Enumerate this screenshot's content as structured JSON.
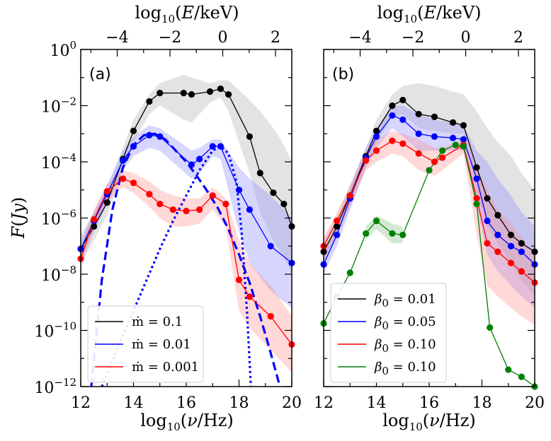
{
  "figure": {
    "ylabel": "F(Jy)",
    "xlabel": "log10(ν/Hz)",
    "top_xlabel": "log10(E/keV)"
  },
  "chart_data": [
    {
      "type": "line",
      "panel_label": "(a)",
      "xlim": [
        12,
        20
      ],
      "ylim_log10": [
        -12,
        0
      ],
      "x_ticks": [
        "12",
        "14",
        "16",
        "18",
        "20"
      ],
      "top_ticks": [
        "−4",
        "−2",
        "0",
        "2"
      ],
      "y_ticks": [
        {
          "base": "10",
          "exp": "0"
        },
        {
          "base": "10",
          "exp": "−2"
        },
        {
          "base": "10",
          "exp": "−4"
        },
        {
          "base": "10",
          "exp": "−6"
        },
        {
          "base": "10",
          "exp": "−8"
        },
        {
          "base": "10",
          "exp": "−10"
        },
        {
          "base": "10",
          "exp": "−12"
        }
      ],
      "legend": [
        {
          "label": "ṁ = 0.1",
          "color": "#000000"
        },
        {
          "label": "ṁ = 0.01",
          "color": "#0000ff"
        },
        {
          "label": "ṁ = 0.001",
          "color": "#ff0000"
        }
      ],
      "series": [
        {
          "name": "ṁ = 0.1",
          "color": "#000000",
          "band": "#b0b0b0",
          "x": [
            12.0,
            12.5,
            13.0,
            13.6,
            14.0,
            14.6,
            15.0,
            15.9,
            16.2,
            16.9,
            17.3,
            17.6,
            18.4,
            18.8,
            19.3,
            19.7,
            20.0
          ],
          "y": [
            -7.1,
            -6.3,
            -5.45,
            -3.9,
            -2.9,
            -1.85,
            -1.55,
            -1.55,
            -1.6,
            -1.5,
            -1.4,
            -1.6,
            -3.1,
            -4.4,
            -5.1,
            -5.5,
            -6.3
          ],
          "band_x": [
            12.0,
            12.5,
            13.0,
            13.6,
            14.0,
            14.6,
            15.0,
            15.9,
            16.2,
            16.9,
            17.3,
            17.6,
            18.4,
            18.8,
            19.3,
            19.7,
            20.0
          ],
          "band_hi": [
            -6.6,
            -5.8,
            -5.0,
            -3.5,
            -2.5,
            -1.6,
            -1.2,
            -0.9,
            -1.0,
            -1.2,
            -1.1,
            -1.1,
            -1.8,
            -2.2,
            -2.8,
            -3.4,
            -4.0
          ],
          "band_lo": [
            -7.6,
            -6.8,
            -5.9,
            -4.3,
            -3.3,
            -2.3,
            -2.0,
            -2.5,
            -2.6,
            -1.9,
            -1.7,
            -2.2,
            -4.4,
            -5.8,
            -6.8,
            -7.4,
            -8.0
          ]
        },
        {
          "name": "ṁ = 0.01",
          "color": "#0000ff",
          "band": "#8a8aff",
          "x": [
            12.0,
            12.5,
            13.0,
            13.6,
            14.0,
            14.6,
            15.0,
            16.2,
            16.5,
            17.0,
            17.3,
            18.0,
            18.4,
            19.2,
            20.0
          ],
          "y": [
            -7.1,
            -6.1,
            -5.15,
            -3.95,
            -3.45,
            -3.05,
            -3.1,
            -4.1,
            -3.9,
            -3.45,
            -3.45,
            -5.0,
            -5.7,
            -7.0,
            -7.6
          ],
          "band_x": [
            12.0,
            12.5,
            13.0,
            13.6,
            14.0,
            14.6,
            15.0,
            16.2,
            16.5,
            17.0,
            17.3,
            18.0,
            18.4,
            19.2,
            20.0
          ],
          "band_hi": [
            -6.8,
            -5.8,
            -4.8,
            -3.6,
            -3.1,
            -2.7,
            -2.8,
            -3.6,
            -3.5,
            -3.2,
            -3.2,
            -4.2,
            -4.6,
            -5.2,
            -6.0
          ],
          "band_lo": [
            -7.5,
            -6.5,
            -5.5,
            -4.3,
            -3.8,
            -3.5,
            -3.6,
            -4.6,
            -4.4,
            -3.8,
            -3.9,
            -6.5,
            -7.6,
            -8.6,
            -9.2
          ]
        },
        {
          "name": "ṁ = 0.001",
          "color": "#ff0000",
          "band": "#ff9090",
          "x": [
            12.0,
            12.5,
            13.0,
            13.6,
            14.0,
            14.6,
            15.0,
            15.5,
            16.0,
            16.5,
            17.0,
            17.5,
            18.0,
            18.4,
            19.2,
            20.0
          ],
          "y": [
            -7.45,
            -6.05,
            -5.05,
            -4.6,
            -4.75,
            -5.15,
            -5.5,
            -5.7,
            -5.75,
            -5.7,
            -5.2,
            -5.5,
            -8.2,
            -8.8,
            -9.5,
            -10.5
          ],
          "band_x": [
            12.0,
            12.5,
            13.0,
            13.6,
            14.0,
            14.6,
            15.0,
            15.5,
            16.0,
            16.5,
            17.0,
            17.5,
            18.0,
            18.4,
            19.2,
            20.0
          ],
          "band_hi": [
            -7.1,
            -5.7,
            -4.8,
            -4.3,
            -4.4,
            -4.7,
            -5.0,
            -5.2,
            -5.3,
            -5.3,
            -4.9,
            -5.3,
            -6.8,
            -7.6,
            -8.4,
            -9.5
          ],
          "band_lo": [
            -7.8,
            -6.4,
            -5.4,
            -4.9,
            -5.1,
            -5.6,
            -6.0,
            -6.3,
            -6.3,
            -6.2,
            -5.7,
            -6.3,
            -9.3,
            -9.9,
            -10.7,
            -11.5
          ]
        }
      ],
      "model_curves": [
        {
          "name": "dashed",
          "color": "#0000ff",
          "style": "dashed",
          "x": [
            12.4,
            12.8,
            13.2,
            13.6,
            14.0,
            14.4,
            14.8,
            15.2,
            15.6,
            16.0,
            16.4,
            16.8,
            17.2,
            17.6,
            18.0,
            18.4,
            18.8,
            19.2,
            19.55
          ],
          "y": [
            -12.0,
            -8.2,
            -5.7,
            -4.2,
            -3.4,
            -3.05,
            -3.0,
            -3.2,
            -3.6,
            -4.0,
            -4.5,
            -5.05,
            -5.65,
            -6.4,
            -7.3,
            -8.3,
            -9.5,
            -10.8,
            -12.0
          ]
        },
        {
          "name": "dotted",
          "color": "#0000ff",
          "style": "dotted",
          "x": [
            12.8,
            13.5,
            14.0,
            14.5,
            15.0,
            15.5,
            16.0,
            16.5,
            17.0,
            17.3,
            17.6,
            17.9,
            18.1,
            18.3,
            18.45
          ],
          "y": [
            -12.0,
            -10.4,
            -9.3,
            -8.2,
            -7.1,
            -6.1,
            -5.2,
            -4.3,
            -3.6,
            -3.45,
            -3.7,
            -4.7,
            -6.5,
            -9.3,
            -12.0
          ]
        }
      ]
    },
    {
      "type": "line",
      "panel_label": "(b)",
      "xlim": [
        12,
        20
      ],
      "ylim_log10": [
        -12,
        0
      ],
      "x_ticks": [
        "12",
        "14",
        "16",
        "18",
        "20"
      ],
      "top_ticks": [
        "−4",
        "−2",
        "0",
        "2"
      ],
      "legend": [
        {
          "label": "β0 = 0.01",
          "base": "β",
          "sub": "0",
          "rest": " = 0.01",
          "color": "#000000"
        },
        {
          "label": "β0 = 0.05",
          "base": "β",
          "sub": "0",
          "rest": " = 0.05",
          "color": "#0000ff"
        },
        {
          "label": "β0 = 0.10",
          "base": "β",
          "sub": "0",
          "rest": " = 0.10",
          "color": "#ff0000"
        },
        {
          "label": "β0 = 0.10",
          "base": "β",
          "sub": "0",
          "rest": " = 0.10",
          "color": "#008000"
        }
      ],
      "series": [
        {
          "name": "β0 = 0.01",
          "color": "#000000",
          "band": "#b0b0b0",
          "x": [
            12.0,
            12.5,
            13.0,
            13.6,
            14.0,
            14.6,
            15.0,
            15.6,
            16.2,
            16.9,
            17.3,
            17.8,
            18.2,
            18.6,
            19.1,
            19.5,
            20.0
          ],
          "y": [
            -7.2,
            -6.3,
            -5.2,
            -3.8,
            -2.9,
            -2.0,
            -1.8,
            -2.3,
            -2.4,
            -2.6,
            -2.7,
            -4.2,
            -5.3,
            -5.9,
            -6.6,
            -6.9,
            -7.2
          ],
          "band_x": [
            12.0,
            12.5,
            13.0,
            13.6,
            14.0,
            14.6,
            15.0,
            15.6,
            16.2,
            16.9,
            17.3,
            17.8,
            18.2,
            18.6,
            19.1,
            19.5,
            20.0
          ],
          "band_hi": [
            -6.8,
            -5.9,
            -4.8,
            -3.5,
            -2.5,
            -1.6,
            -1.3,
            -1.2,
            -1.3,
            -1.5,
            -1.6,
            -2.2,
            -2.8,
            -3.3,
            -3.8,
            -4.4,
            -5.0
          ],
          "band_lo": [
            -7.6,
            -6.7,
            -5.6,
            -4.2,
            -3.3,
            -2.4,
            -2.3,
            -2.8,
            -2.9,
            -3.0,
            -3.0,
            -5.0,
            -6.3,
            -6.9,
            -7.6,
            -8.2,
            -8.8
          ]
        },
        {
          "name": "β0 = 0.05",
          "color": "#0000ff",
          "band": "#8a8aff",
          "x": [
            12.0,
            12.5,
            13.0,
            13.6,
            14.0,
            14.6,
            15.0,
            15.6,
            16.2,
            16.9,
            17.3,
            17.8,
            18.2,
            18.6,
            19.1,
            19.5,
            20.0
          ],
          "y": [
            -7.65,
            -6.6,
            -5.3,
            -3.85,
            -3.1,
            -2.35,
            -2.5,
            -3.0,
            -3.1,
            -3.15,
            -3.2,
            -4.6,
            -6.1,
            -6.6,
            -7.0,
            -7.2,
            -7.65
          ],
          "band_x": [
            12.0,
            12.5,
            13.0,
            13.6,
            14.0,
            14.6,
            15.0,
            15.6,
            16.2,
            16.9,
            17.3,
            17.8,
            18.2,
            18.6,
            19.1,
            19.5,
            20.0
          ],
          "band_hi": [
            -7.3,
            -6.2,
            -4.9,
            -3.5,
            -2.8,
            -2.0,
            -2.0,
            -2.3,
            -2.5,
            -2.6,
            -2.7,
            -3.6,
            -4.0,
            -4.6,
            -5.2,
            -5.8,
            -6.3
          ],
          "band_lo": [
            -8.0,
            -7.0,
            -5.7,
            -4.2,
            -3.5,
            -2.8,
            -3.1,
            -3.6,
            -3.6,
            -3.6,
            -3.6,
            -5.6,
            -7.3,
            -7.9,
            -8.4,
            -8.8,
            -9.2
          ]
        },
        {
          "name": "β0 = 0.10",
          "color": "#ff0000",
          "band": "#ff9090",
          "x": [
            12.0,
            12.5,
            13.0,
            13.6,
            14.0,
            14.6,
            15.0,
            15.6,
            16.2,
            16.5,
            17.3,
            17.8,
            18.2,
            18.6,
            19.1,
            19.5,
            20.0
          ],
          "y": [
            -7.0,
            -6.1,
            -5.2,
            -3.95,
            -3.6,
            -3.25,
            -3.35,
            -3.7,
            -4.0,
            -3.85,
            -3.4,
            -5.3,
            -6.9,
            -7.2,
            -7.6,
            -7.9,
            -8.3
          ],
          "band_x": [
            12.0,
            12.5,
            13.0,
            13.6,
            14.0,
            14.6,
            15.0,
            15.6,
            16.2,
            16.5,
            17.3,
            17.8,
            18.2,
            18.6,
            19.1,
            19.5,
            20.0
          ],
          "band_hi": [
            -6.7,
            -5.8,
            -4.9,
            -3.6,
            -3.2,
            -2.9,
            -3.0,
            -3.2,
            -3.5,
            -3.5,
            -3.2,
            -4.2,
            -5.0,
            -5.7,
            -6.2,
            -6.7,
            -7.3
          ],
          "band_lo": [
            -7.4,
            -6.5,
            -5.6,
            -4.3,
            -4.0,
            -3.7,
            -3.8,
            -4.3,
            -4.5,
            -4.3,
            -3.7,
            -6.6,
            -8.4,
            -8.8,
            -9.2,
            -9.5,
            -9.8
          ]
        },
        {
          "name": "β0 = 0.10 (green)",
          "color": "#008000",
          "band": "#80c080",
          "x": [
            12.0,
            12.5,
            13.0,
            13.6,
            14.0,
            14.6,
            15.0,
            16.0,
            16.5,
            17.0,
            17.3,
            17.8,
            18.3,
            19.0,
            19.5,
            20.0
          ],
          "y": [
            -9.75,
            -8.8,
            -7.95,
            -6.55,
            -6.1,
            -6.55,
            -6.6,
            -4.3,
            -3.6,
            -3.4,
            -3.45,
            -5.5,
            -9.9,
            -11.4,
            -11.65,
            -12.0
          ],
          "band_x": [
            13.6,
            14.0,
            14.6,
            15.0
          ],
          "band_hi": [
            -6.3,
            -5.9,
            -6.2,
            -6.3
          ],
          "band_lo": [
            -6.8,
            -6.4,
            -6.9,
            -6.9
          ]
        }
      ]
    }
  ]
}
